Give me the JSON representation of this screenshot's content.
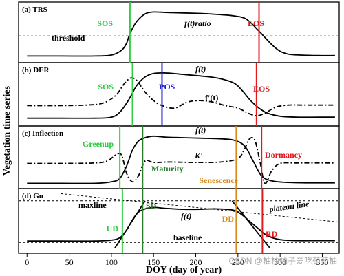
{
  "ylabel": "Vegetation time series",
  "xlabel": "DOY (day of year)",
  "watermark": "CSDN @柚柚柚子爱吃荀荀柚",
  "xaxis": {
    "ticks": [
      0,
      50,
      100,
      150,
      200,
      250,
      300,
      350
    ],
    "tick_labels": [
      "0",
      "50",
      "100",
      "150",
      "200",
      "250",
      "300",
      "350"
    ],
    "xlim": [
      -10,
      370
    ]
  },
  "colors": {
    "green": "#2ecc40",
    "blue": "#1f1fd6",
    "red": "#e0191c",
    "orange": "#d98a1f",
    "darkgreen": "#2a7d2a",
    "black": "#000000"
  },
  "chart_data": [
    {
      "type": "line",
      "panel": "(a) TRS",
      "series": [
        {
          "name": "f(t)ratio",
          "x": [
            0,
            40,
            80,
            100,
            112,
            118,
            122,
            130,
            140,
            150,
            165,
            185,
            205,
            225,
            245,
            260,
            275,
            290,
            300,
            310,
            325,
            345,
            365
          ],
          "values": [
            0.08,
            0.08,
            0.08,
            0.1,
            0.2,
            0.35,
            0.55,
            0.8,
            0.96,
            1.0,
            0.99,
            0.98,
            0.97,
            0.95,
            0.92,
            0.85,
            0.6,
            0.32,
            0.18,
            0.12,
            0.1,
            0.09,
            0.09
          ]
        },
        {
          "name": "threshold",
          "x": [
            -10,
            370
          ],
          "values": [
            0.5,
            0.5
          ],
          "style": "dashed"
        }
      ],
      "annotations": [
        {
          "label": "SOS",
          "x": 122,
          "color": "green"
        },
        {
          "label": "EOS",
          "x": 275,
          "color": "red"
        },
        {
          "label": "threshold",
          "x": 55,
          "y": 0.28
        },
        {
          "label": "f(t)ratio",
          "x": 220,
          "y": 0.82
        }
      ]
    },
    {
      "type": "line",
      "panel": "(b) DER",
      "series": [
        {
          "name": "f(t)",
          "x": [
            0,
            40,
            80,
            100,
            110,
            120,
            130,
            140,
            150,
            165,
            185,
            205,
            225,
            245,
            255,
            265,
            275,
            285,
            300,
            320,
            345,
            365
          ],
          "values": [
            0.1,
            0.1,
            0.1,
            0.12,
            0.22,
            0.45,
            0.75,
            0.92,
            0.99,
            1.0,
            0.97,
            0.94,
            0.9,
            0.8,
            0.65,
            0.45,
            0.3,
            0.2,
            0.14,
            0.12,
            0.12,
            0.12
          ]
        },
        {
          "name": "f'(t)",
          "x": [
            0,
            40,
            70,
            90,
            105,
            115,
            123,
            130,
            140,
            150,
            160,
            175,
            190,
            205,
            220,
            235,
            250,
            262,
            272,
            282,
            295,
            310,
            330,
            365
          ],
          "values": [
            0.35,
            0.35,
            0.36,
            0.4,
            0.55,
            0.78,
            0.9,
            0.85,
            0.62,
            0.45,
            0.35,
            0.3,
            0.42,
            0.45,
            0.42,
            0.35,
            0.3,
            0.2,
            0.15,
            0.2,
            0.32,
            0.36,
            0.36,
            0.36
          ],
          "style": "dashdot"
        }
      ],
      "annotations": [
        {
          "label": "SOS",
          "x": 125,
          "color": "green"
        },
        {
          "label": "POS",
          "x": 160,
          "color": "blue"
        },
        {
          "label": "EOS",
          "x": 272,
          "color": "red"
        },
        {
          "label": "f(t)",
          "x": 200,
          "y": 1.0
        },
        {
          "label": "f'(t)",
          "x": 215,
          "y": 0.5
        }
      ]
    },
    {
      "type": "line",
      "panel": "(c) Inflection",
      "series": [
        {
          "name": "f(t)",
          "x": [
            0,
            40,
            80,
            100,
            110,
            118,
            125,
            132,
            140,
            150,
            165,
            185,
            205,
            225,
            245,
            258,
            268,
            278,
            290,
            305,
            330,
            365
          ],
          "values": [
            0.05,
            0.05,
            0.05,
            0.08,
            0.15,
            0.4,
            0.72,
            0.9,
            0.97,
            1.0,
            0.98,
            0.97,
            0.96,
            0.95,
            0.92,
            0.8,
            0.5,
            0.2,
            0.1,
            0.07,
            0.06,
            0.06
          ]
        },
        {
          "name": "K'",
          "x": [
            0,
            40,
            80,
            95,
            105,
            112,
            118,
            125,
            132,
            140,
            150,
            170,
            200,
            230,
            250,
            258,
            264,
            270,
            276,
            282,
            290,
            300,
            320,
            365
          ],
          "values": [
            0.45,
            0.45,
            0.46,
            0.5,
            0.62,
            0.62,
            0.25,
            0.08,
            0.2,
            0.5,
            0.47,
            0.48,
            0.47,
            0.48,
            0.55,
            0.75,
            0.95,
            0.92,
            0.5,
            0.05,
            0.3,
            0.45,
            0.46,
            0.46
          ],
          "style": "dashdot"
        }
      ],
      "annotations": [
        {
          "label": "Greenup",
          "x": 110,
          "color": "green"
        },
        {
          "label": "Maturity",
          "x": 137,
          "color": "darkgreen"
        },
        {
          "label": "Senescence",
          "x": 248,
          "color": "orange"
        },
        {
          "label": "Dormancy",
          "x": 278,
          "color": "red"
        },
        {
          "label": "f(t)",
          "x": 200,
          "y": 1.0
        },
        {
          "label": "K'",
          "x": 190,
          "y": 0.55
        }
      ]
    },
    {
      "type": "line",
      "panel": "(d) Gu",
      "series": [
        {
          "name": "f(t)",
          "x": [
            0,
            40,
            80,
            100,
            110,
            118,
            125,
            132,
            140,
            150,
            165,
            185,
            205,
            225,
            245,
            255,
            265,
            275,
            285,
            300,
            320,
            345,
            365
          ],
          "values": [
            0.05,
            0.05,
            0.05,
            0.07,
            0.12,
            0.28,
            0.5,
            0.66,
            0.73,
            0.76,
            0.74,
            0.72,
            0.72,
            0.73,
            0.7,
            0.6,
            0.45,
            0.3,
            0.16,
            0.08,
            0.06,
            0.06,
            0.06
          ]
        },
        {
          "name": "maxline",
          "x": [
            -10,
            370
          ],
          "values": [
            0.9,
            0.9
          ],
          "style": "dashed"
        },
        {
          "name": "baseline",
          "x": [
            -10,
            370
          ],
          "values": [
            0.02,
            0.02
          ],
          "style": "dashed"
        },
        {
          "name": "plateau line",
          "x": [
            40,
            370
          ],
          "values": [
            1.05,
            0.45
          ],
          "style": "dashed"
        },
        {
          "name": "tangent-up",
          "x": [
            104,
            140
          ],
          "values": [
            -0.1,
            0.9
          ]
        },
        {
          "name": "tangent-down",
          "x": [
            243,
            288
          ],
          "values": [
            0.9,
            -0.1
          ]
        }
      ],
      "annotations": [
        {
          "label": "UD",
          "x": 113,
          "color": "green"
        },
        {
          "label": "SD",
          "x": 137,
          "color": "darkgreen"
        },
        {
          "label": "DD",
          "x": 248,
          "color": "orange"
        },
        {
          "label": "RD",
          "x": 279,
          "color": "red"
        },
        {
          "label": "maxline",
          "x": 60,
          "y": 0.82
        },
        {
          "label": "baseline",
          "x": 215,
          "y": 0.14
        },
        {
          "label": "plateau line",
          "x": 330,
          "y": 0.6
        },
        {
          "label": "f(t)",
          "x": 190,
          "y": 0.58
        }
      ]
    }
  ]
}
